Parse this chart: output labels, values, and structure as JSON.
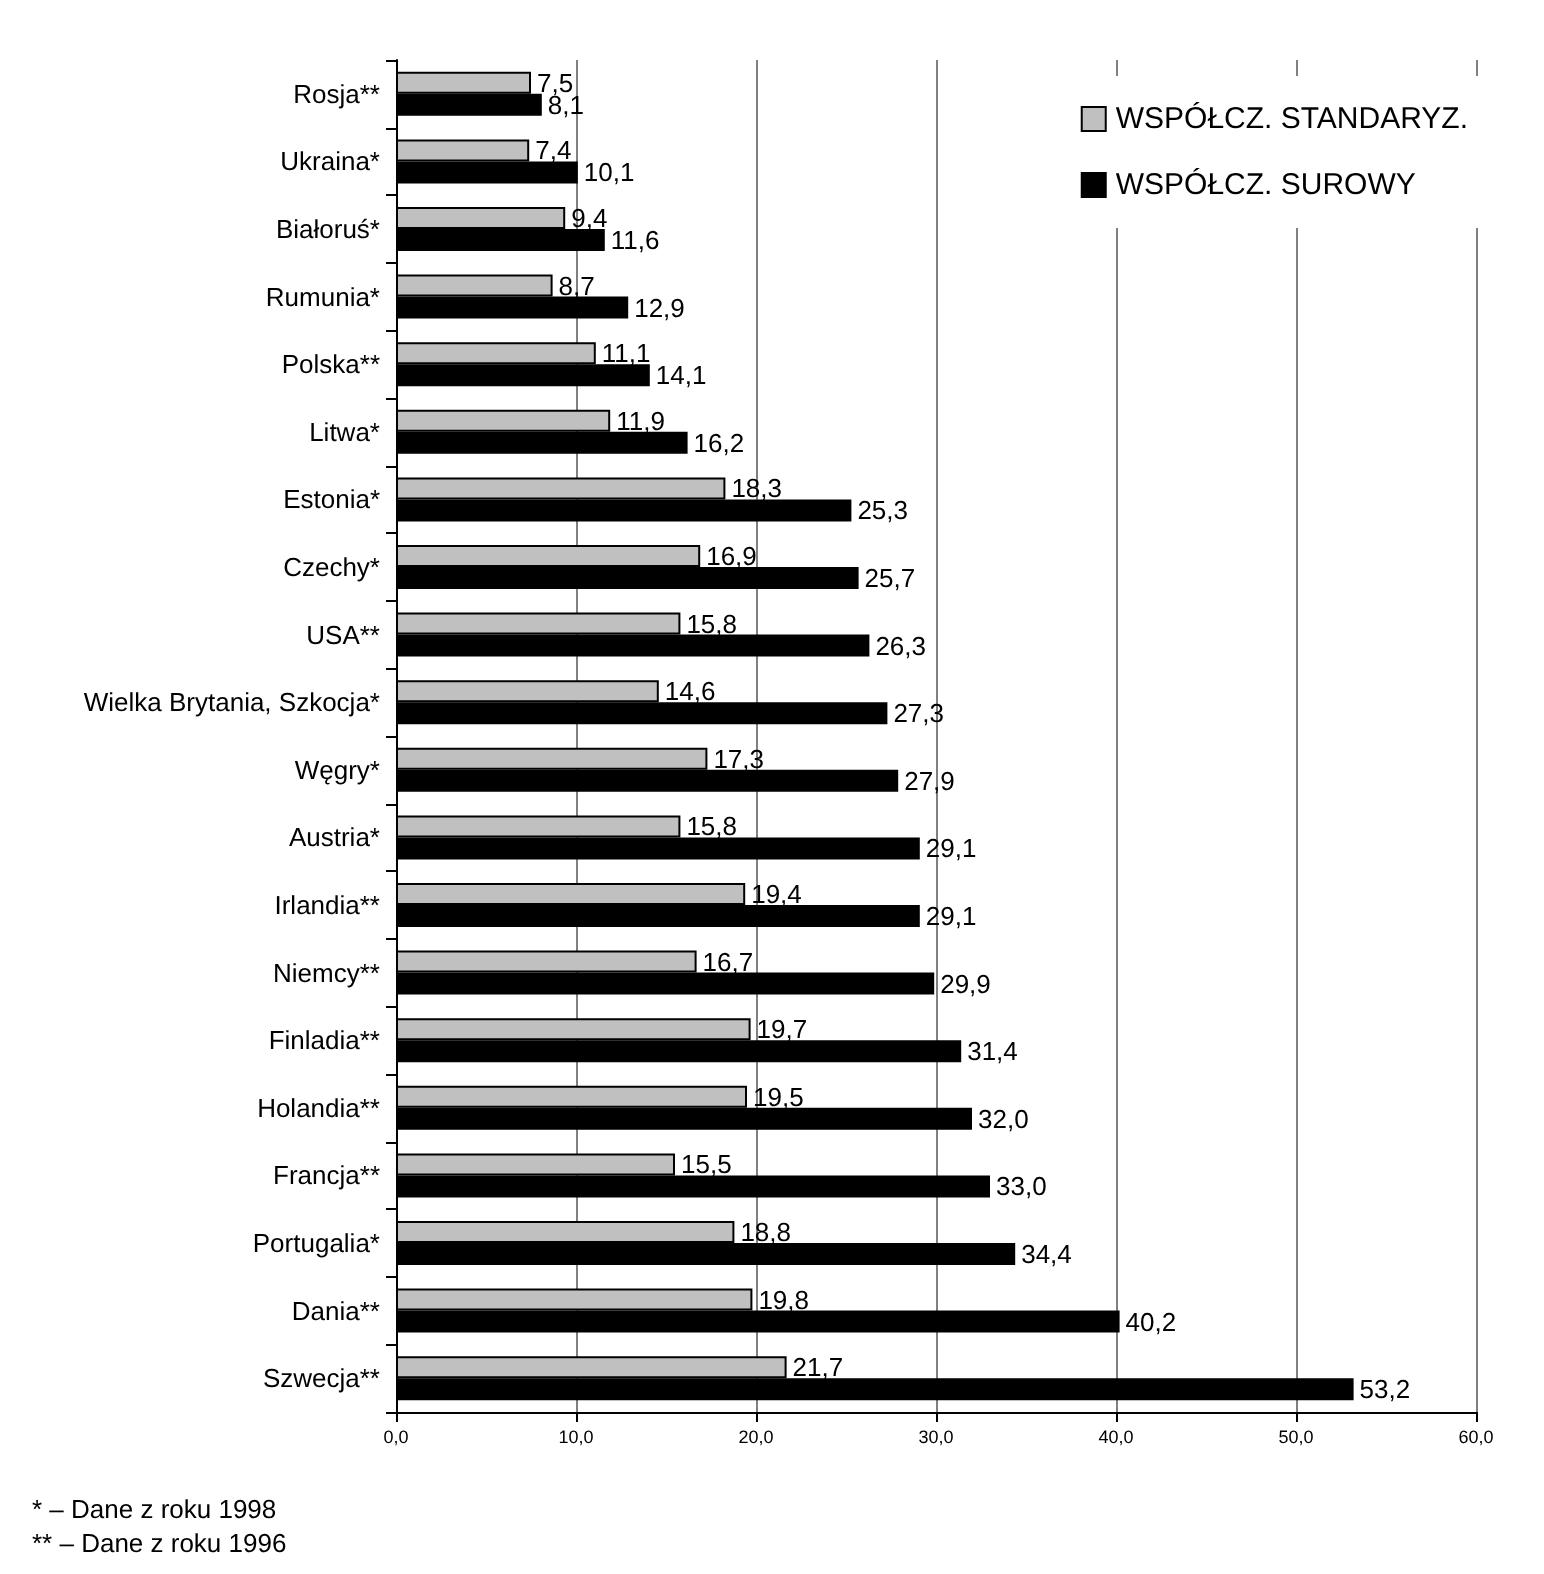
{
  "chart_data": {
    "type": "bar",
    "orientation": "horizontal",
    "categories": [
      "Rosja**",
      "Ukraina*",
      "Białoruś*",
      "Rumunia*",
      "Polska**",
      "Litwa*",
      "Estonia*",
      "Czechy*",
      "USA**",
      "Wielka Brytania, Szkocja*",
      "Węgry*",
      "Austria*",
      "Irlandia**",
      "Niemcy**",
      "Finladia**",
      "Holandia**",
      "Francja**",
      "Portugalia*",
      "Dania**",
      "Szwecja**"
    ],
    "series": [
      {
        "name": "WSPÓŁCZ. STANDARYZ.",
        "color": "#c0c0c0",
        "values": [
          7.5,
          7.4,
          9.4,
          8.7,
          11.1,
          11.9,
          18.3,
          16.9,
          15.8,
          14.6,
          17.3,
          15.8,
          19.4,
          16.7,
          19.7,
          19.5,
          15.5,
          18.8,
          19.8,
          21.7
        ],
        "value_labels": [
          "7,5",
          "7,4",
          "9,4",
          "8,7",
          "11,1",
          "11,9",
          "18,3",
          "16,9",
          "15,8",
          "14,6",
          "17,3",
          "15,8",
          "19,4",
          "16,7",
          "19,7",
          "19,5",
          "15,5",
          "18,8",
          "19,8",
          "21,7"
        ]
      },
      {
        "name": "WSPÓŁCZ. SUROWY",
        "color": "#000000",
        "values": [
          8.1,
          10.1,
          11.6,
          12.9,
          14.1,
          16.2,
          25.3,
          25.7,
          26.3,
          27.3,
          27.9,
          29.1,
          29.1,
          29.9,
          31.4,
          32.0,
          33.0,
          34.4,
          40.2,
          53.2
        ],
        "value_labels": [
          "8,1",
          "10,1",
          "11,6",
          "12,9",
          "14,1",
          "16,2",
          "25,3",
          "25,7",
          "26,3",
          "27,3",
          "27,9",
          "29,1",
          "29,1",
          "29,9",
          "31,4",
          "32,0",
          "33,0",
          "34,4",
          "40,2",
          "53,2"
        ]
      }
    ],
    "xlim": [
      0,
      60
    ],
    "xticks": [
      {
        "value": 0,
        "label": "0,0"
      },
      {
        "value": 10,
        "label": "10,0"
      },
      {
        "value": 20,
        "label": "20,0"
      },
      {
        "value": 30,
        "label": "30,0"
      },
      {
        "value": 40,
        "label": "40,0"
      },
      {
        "value": 50,
        "label": "50,0"
      },
      {
        "value": 60,
        "label": "60,0"
      }
    ],
    "grid": "x",
    "legend": "top right",
    "annotations": [
      "* – Dane z roku 1998",
      "** – Dane z roku 1996"
    ]
  }
}
